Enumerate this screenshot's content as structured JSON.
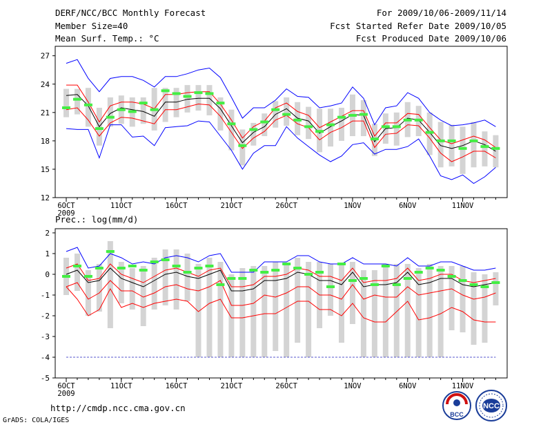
{
  "header": {
    "title": "DERF/NCC/BCC Monthly Forecast",
    "member_size": "Member Size=40",
    "variable_1": "Mean Surf. Temp.: °C",
    "period": "For 2009/10/06-2009/11/14",
    "start_date": "Fcst Started Refer Date 2009/10/05",
    "produced_date": "Fcst Produced Date 2009/10/06"
  },
  "footer": {
    "url": "http://cmdp.ncc.cma.gov.cn",
    "grads_credit": "GrADS: COLA/IGES",
    "logo_bcc_text": "BCC",
    "logo_ncc_text": "NCC"
  },
  "chart_data": [
    {
      "type": "line",
      "title": "Mean Surf. Temp.: °C",
      "x_ticks": [
        "6OCT\n2009",
        "11OCT",
        "16OCT",
        "21OCT",
        "26OCT",
        "1NOV",
        "6NOV",
        "11NOV"
      ],
      "x_tick_days": [
        0,
        5,
        10,
        15,
        20,
        26,
        31,
        36
      ],
      "y_ticks": [
        12,
        15,
        18,
        21,
        24,
        27
      ],
      "ylim": [
        12,
        28
      ],
      "days": 40,
      "series": [
        {
          "name": "upper",
          "color": "#0000ff",
          "values": [
            26.2,
            26.6,
            24.6,
            23.2,
            24.6,
            24.8,
            24.8,
            24.4,
            23.7,
            24.8,
            24.8,
            25.1,
            25.5,
            25.7,
            24.7,
            22.6,
            20.4,
            21.5,
            21.5,
            22.3,
            23.5,
            22.7,
            22.6,
            21.5,
            21.7,
            22.0,
            23.7,
            22.5,
            19.7,
            21.5,
            21.7,
            23.1,
            22.5,
            21.0,
            20.2,
            19.6,
            19.7,
            19.9,
            20.2,
            19.5
          ]
        },
        {
          "name": "upper_mid",
          "color": "#ff0000",
          "values": [
            23.9,
            23.9,
            22.1,
            20.0,
            21.7,
            22.1,
            22.1,
            21.9,
            21.4,
            22.9,
            22.9,
            23.1,
            23.2,
            23.2,
            21.9,
            20.2,
            18.3,
            19.5,
            20.1,
            21.5,
            22.0,
            21.1,
            20.7,
            19.4,
            20.0,
            20.6,
            21.2,
            21.2,
            18.5,
            19.9,
            19.9,
            20.9,
            20.8,
            19.4,
            18.1,
            17.7,
            18.1,
            18.5,
            18.1,
            17.3
          ]
        },
        {
          "name": "mean",
          "color": "#000000",
          "values": [
            22.8,
            22.9,
            21.7,
            19.5,
            20.9,
            21.5,
            21.3,
            21.1,
            20.6,
            22.1,
            22.1,
            22.4,
            22.5,
            22.5,
            21.4,
            19.6,
            17.8,
            18.9,
            19.5,
            20.8,
            21.4,
            20.4,
            20.1,
            18.8,
            19.5,
            20.1,
            20.8,
            20.7,
            17.9,
            19.3,
            19.4,
            20.4,
            20.2,
            18.9,
            17.5,
            17.2,
            17.5,
            18.0,
            17.6,
            16.9
          ]
        },
        {
          "name": "lower_mid",
          "color": "#ff0000",
          "values": [
            21.3,
            21.5,
            20.2,
            18.5,
            19.9,
            20.5,
            20.4,
            20.1,
            19.8,
            21.3,
            21.3,
            21.6,
            21.9,
            21.8,
            20.6,
            18.9,
            17.2,
            18.3,
            19.0,
            20.2,
            20.7,
            19.8,
            19.4,
            18.1,
            18.9,
            19.4,
            20.1,
            20.1,
            17.3,
            18.7,
            18.8,
            19.7,
            19.6,
            18.3,
            16.7,
            15.8,
            16.3,
            16.9,
            16.9,
            16.2
          ]
        },
        {
          "name": "lower",
          "color": "#0000ff",
          "values": [
            19.3,
            19.2,
            19.2,
            16.2,
            19.7,
            19.7,
            18.4,
            18.5,
            17.5,
            19.4,
            19.5,
            19.6,
            20.1,
            20.0,
            18.5,
            17.0,
            15.0,
            16.7,
            17.5,
            17.5,
            19.5,
            18.3,
            17.4,
            16.5,
            15.8,
            16.4,
            17.6,
            17.8,
            16.6,
            17.1,
            17.1,
            17.4,
            18.2,
            16.4,
            14.3,
            13.9,
            14.4,
            13.5,
            14.2,
            15.2
          ]
        },
        {
          "name": "observed",
          "color": "#44ee44",
          "values": [
            21.5,
            22.4,
            21.8,
            19.3,
            20.5,
            21.3,
            21.1,
            22.0,
            21.3,
            23.3,
            23.0,
            22.7,
            23.1,
            23.0,
            22.0,
            19.8,
            17.5,
            19.2,
            20.0,
            21.3,
            20.8,
            20.2,
            19.5,
            19.0,
            19.7,
            20.5,
            20.7,
            20.8,
            18.2,
            19.5,
            19.5,
            20.2,
            20.2,
            18.9,
            18.0,
            18.0,
            17.2,
            18.0,
            17.4,
            17.2
          ]
        }
      ],
      "box_range": [
        [
          20.5,
          23.5
        ],
        [
          20.8,
          23.5
        ],
        [
          19.5,
          23.6
        ],
        [
          17.5,
          21.5
        ],
        [
          19.5,
          22.6
        ],
        [
          19.8,
          22.8
        ],
        [
          19.5,
          22.6
        ],
        [
          19.8,
          22.6
        ],
        [
          19.1,
          23.6
        ],
        [
          20.0,
          23.6
        ],
        [
          20.5,
          23.6
        ],
        [
          21.0,
          23.9
        ],
        [
          21.2,
          23.9
        ],
        [
          20.7,
          23.9
        ],
        [
          19.1,
          22.6
        ],
        [
          17.0,
          21.3
        ],
        [
          15.4,
          19.2
        ],
        [
          17.5,
          19.9
        ],
        [
          18.5,
          20.9
        ],
        [
          19.4,
          22.2
        ],
        [
          19.6,
          22.6
        ],
        [
          18.6,
          22.1
        ],
        [
          18.2,
          21.6
        ],
        [
          16.8,
          21.4
        ],
        [
          17.4,
          21.4
        ],
        [
          18.0,
          21.5
        ],
        [
          18.5,
          22.9
        ],
        [
          18.5,
          22.3
        ],
        [
          16.4,
          19.8
        ],
        [
          17.7,
          20.9
        ],
        [
          17.5,
          21.0
        ],
        [
          18.4,
          22.1
        ],
        [
          18.5,
          21.7
        ],
        [
          16.5,
          21.0
        ],
        [
          15.2,
          20.0
        ],
        [
          15.3,
          19.7
        ],
        [
          14.5,
          19.5
        ],
        [
          15.2,
          20.0
        ],
        [
          15.3,
          19.0
        ],
        [
          15.2,
          18.6
        ]
      ],
      "box_draw": "0,1,2,3,4,5,6,7,8,9,10,11,12,13,14,15,16,17,18,19,20,21,22,23,24,25,26,27,28,29,30,31,32,33,34,35,36,37,38,39"
    },
    {
      "type": "line",
      "title": "Prec.: log(mm/d)",
      "x_ticks": [
        "6OCT\n2009",
        "11OCT",
        "16OCT",
        "21OCT",
        "26OCT",
        "1NOV",
        "6NOV",
        "11NOV"
      ],
      "x_tick_days": [
        0,
        5,
        10,
        15,
        20,
        26,
        31,
        36
      ],
      "y_ticks": [
        -5,
        -4,
        -3,
        -2,
        -1,
        0,
        1,
        2
      ],
      "ylim": [
        -5,
        2.2
      ],
      "days": 40,
      "series": [
        {
          "name": "upper",
          "color": "#0000ff",
          "values": [
            1.1,
            1.3,
            0.3,
            0.4,
            1.0,
            0.8,
            0.5,
            0.6,
            0.5,
            0.8,
            0.9,
            0.8,
            0.6,
            0.9,
            1.0,
            0.1,
            0.1,
            0.1,
            0.6,
            0.6,
            0.6,
            0.9,
            0.9,
            0.6,
            0.5,
            0.5,
            0.8,
            0.5,
            0.5,
            0.5,
            0.4,
            0.8,
            0.4,
            0.4,
            0.6,
            0.6,
            0.4,
            0.2,
            0.2,
            0.3
          ]
        },
        {
          "name": "upper_mid",
          "color": "#ff0000",
          "values": [
            0.3,
            0.5,
            -0.3,
            -0.2,
            0.5,
            0.0,
            -0.2,
            -0.4,
            -0.1,
            0.2,
            0.3,
            0.1,
            -0.1,
            0.2,
            0.3,
            -0.6,
            -0.6,
            -0.5,
            -0.1,
            -0.1,
            0.0,
            0.3,
            0.2,
            -0.1,
            -0.1,
            -0.3,
            0.3,
            -0.4,
            -0.3,
            -0.3,
            -0.2,
            0.3,
            -0.3,
            -0.2,
            0.0,
            0.0,
            -0.3,
            -0.4,
            -0.3,
            -0.2
          ]
        },
        {
          "name": "mean",
          "color": "#000000",
          "values": [
            0.0,
            0.2,
            -0.4,
            -0.3,
            0.3,
            -0.2,
            -0.4,
            -0.6,
            -0.3,
            0.0,
            0.1,
            -0.1,
            -0.2,
            0.0,
            0.2,
            -0.8,
            -0.8,
            -0.7,
            -0.3,
            -0.3,
            -0.2,
            0.1,
            0.0,
            -0.3,
            -0.3,
            -0.5,
            0.1,
            -0.6,
            -0.5,
            -0.5,
            -0.4,
            0.1,
            -0.5,
            -0.4,
            -0.2,
            -0.2,
            -0.5,
            -0.6,
            -0.5,
            -0.4
          ]
        },
        {
          "name": "lower_mid",
          "color": "#ff0000",
          "values": [
            -0.6,
            -0.4,
            -1.2,
            -0.9,
            -0.3,
            -0.8,
            -0.8,
            -1.1,
            -0.9,
            -0.6,
            -0.5,
            -0.7,
            -0.8,
            -0.6,
            -0.3,
            -1.5,
            -1.5,
            -1.4,
            -1.0,
            -1.1,
            -0.9,
            -0.6,
            -0.6,
            -1.0,
            -1.0,
            -1.2,
            -0.5,
            -1.2,
            -1.0,
            -1.1,
            -1.1,
            -0.6,
            -1.0,
            -0.9,
            -0.8,
            -0.7,
            -1.0,
            -1.2,
            -1.1,
            -0.9
          ]
        },
        {
          "name": "lower",
          "color": "#ff0000",
          "values": [
            -0.6,
            -1.2,
            -2.0,
            -1.7,
            -0.7,
            -1.6,
            -1.4,
            -1.6,
            -1.4,
            -1.3,
            -1.2,
            -1.3,
            -1.8,
            -1.4,
            -1.2,
            -2.1,
            -2.1,
            -2.0,
            -1.9,
            -1.9,
            -1.6,
            -1.3,
            -1.3,
            -1.7,
            -1.7,
            -2.0,
            -1.4,
            -2.1,
            -2.3,
            -2.3,
            -1.8,
            -1.3,
            -2.2,
            -2.1,
            -1.9,
            -1.6,
            -1.8,
            -2.2,
            -2.3,
            -2.3
          ]
        },
        {
          "name": "floor",
          "color": "#5555cc",
          "values": [
            -4,
            -4,
            -4,
            -4,
            -4,
            -4,
            -4,
            -4,
            -4,
            -4,
            -4,
            -4,
            -4,
            -4,
            -4,
            -4,
            -4,
            -4,
            -4,
            -4,
            -4,
            -4,
            -4,
            -4,
            -4,
            -4,
            -4,
            -4,
            -4,
            -4,
            -4,
            -4,
            -4,
            -4,
            -4,
            -4,
            -4,
            -4,
            -4,
            -4
          ]
        },
        {
          "name": "observed",
          "color": "#44ee44",
          "values": [
            -0.1,
            0.4,
            -0.1,
            0.3,
            1.1,
            0.3,
            0.4,
            0.2,
            0.6,
            0.7,
            0.4,
            0.1,
            0.3,
            0.4,
            -0.5,
            -0.2,
            -0.2,
            0.2,
            0.1,
            0.2,
            0.5,
            0.3,
            0.0,
            0.1,
            -0.6,
            0.5,
            -0.3,
            -0.2,
            -0.5,
            0.4,
            -0.5,
            -0.2,
            0.1,
            0.3,
            0.2,
            -0.1,
            -0.3,
            -0.5,
            -0.6,
            -0.4
          ]
        }
      ],
      "box_range": [
        [
          -1.0,
          0.8
        ],
        [
          -0.8,
          1.0
        ],
        [
          -2.0,
          0.2
        ],
        [
          -1.8,
          0.5
        ],
        [
          -2.6,
          1.6
        ],
        [
          -1.4,
          0.6
        ],
        [
          -1.7,
          0.3
        ],
        [
          -2.5,
          0.4
        ],
        [
          -1.7,
          0.8
        ],
        [
          -1.5,
          1.2
        ],
        [
          -1.7,
          1.2
        ],
        [
          -1.3,
          1.0
        ],
        [
          -4.0,
          0.5
        ],
        [
          -4.0,
          0.8
        ],
        [
          -4.0,
          0.6
        ],
        [
          -4.0,
          0.0
        ],
        [
          -4.0,
          0.3
        ],
        [
          -4.0,
          0.4
        ],
        [
          -4.0,
          0.4
        ],
        [
          -3.7,
          0.6
        ],
        [
          -4.0,
          0.5
        ],
        [
          -3.3,
          0.8
        ],
        [
          -4.0,
          0.6
        ],
        [
          -2.6,
          0.6
        ],
        [
          -2.0,
          0.5
        ],
        [
          -3.3,
          0.5
        ],
        [
          -2.4,
          0.6
        ],
        [
          -4.0,
          0.2
        ],
        [
          -4.0,
          0.2
        ],
        [
          -4.0,
          0.5
        ],
        [
          -4.0,
          0.5
        ],
        [
          -4.0,
          0.5
        ],
        [
          -4.0,
          0.3
        ],
        [
          -4.0,
          0.5
        ],
        [
          -4.0,
          0.4
        ],
        [
          -2.7,
          0.4
        ],
        [
          -2.8,
          0.4
        ],
        [
          -3.4,
          0.1
        ],
        [
          -3.3,
          0.0
        ],
        [
          -1.5,
          0.1
        ]
      ],
      "box_draw": "0,1,2,3,4,5,6,7,8,9,10,11,12,13,14,15,16,17,18,19,20,21,22,23,24,25,26,27,28,29,30,31,32,33,34,35,36,37,38,39"
    }
  ]
}
